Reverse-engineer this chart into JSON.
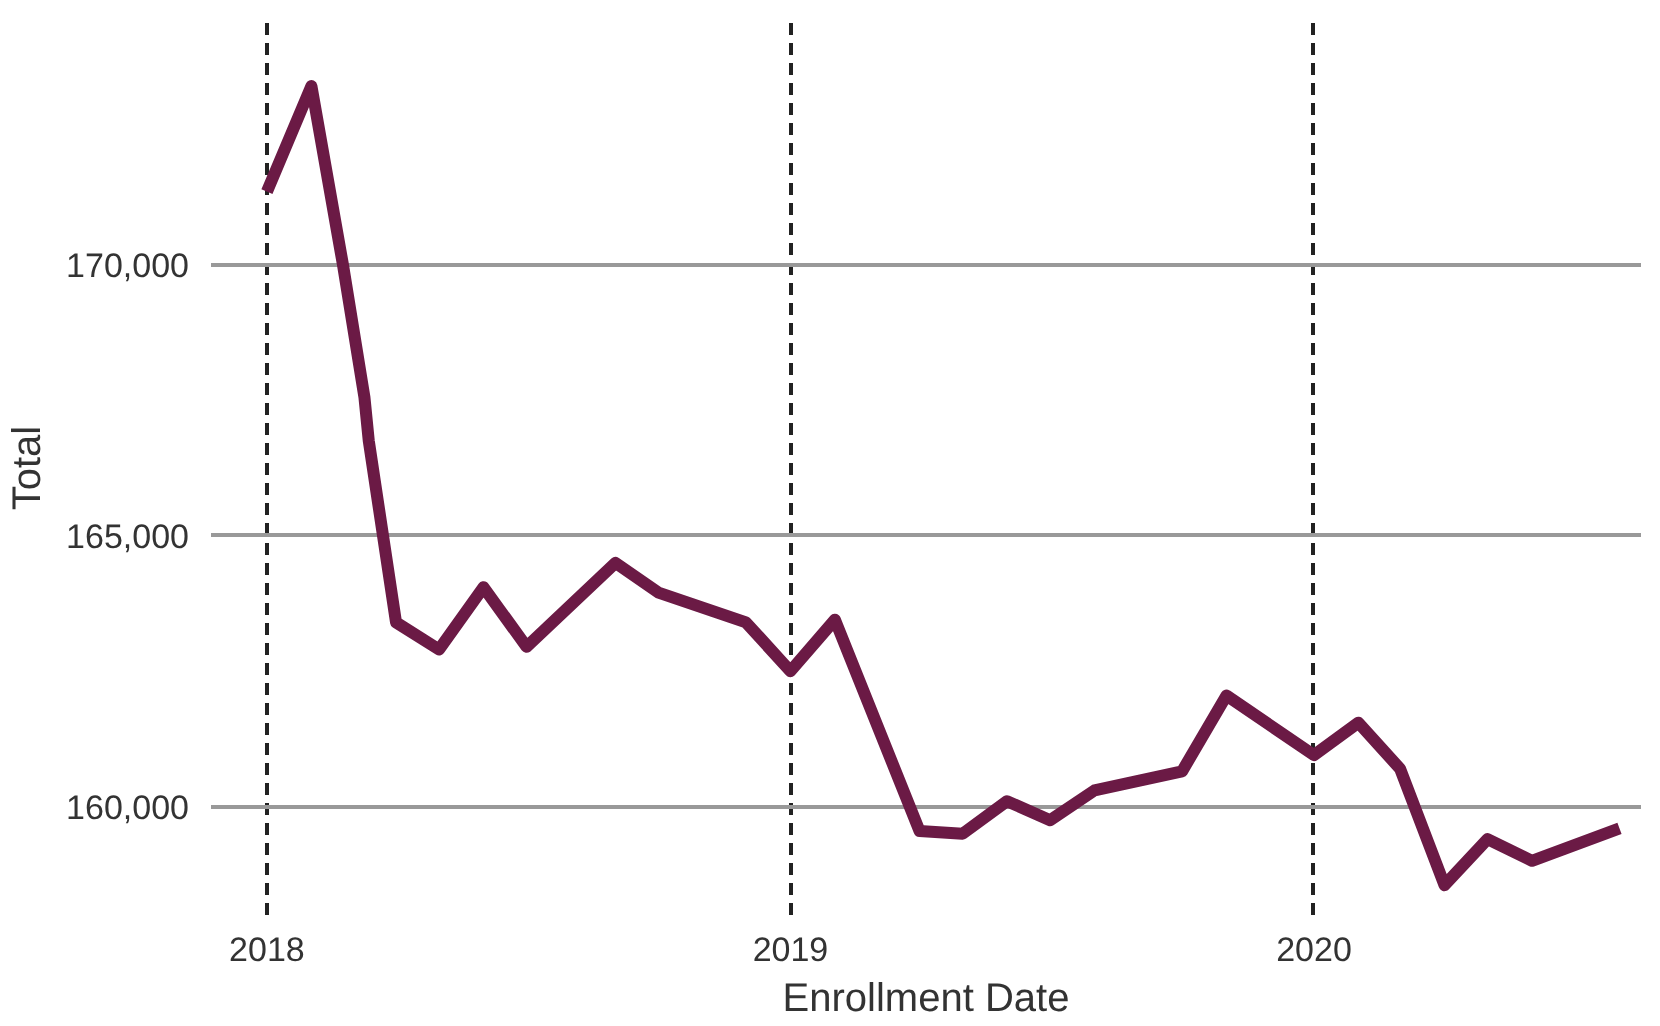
{
  "chart_data": {
    "type": "line",
    "xlabel": "Enrollment Date",
    "ylabel": "Total",
    "x": [
      "2018-01-01",
      "2018-02-01",
      "2018-02-23",
      "2018-03-10",
      "2018-03-13",
      "2018-04-01",
      "2018-05-01",
      "2018-06-01",
      "2018-07-01",
      "2018-09-01",
      "2018-10-01",
      "2018-12-01",
      "2019-01-01",
      "2019-02-01",
      "2019-04-01",
      "2019-05-01",
      "2019-06-01",
      "2019-07-01",
      "2019-08-01",
      "2019-10-01",
      "2019-11-01",
      "2020-01-01",
      "2020-02-01",
      "2020-03-01",
      "2020-04-01",
      "2020-05-01",
      "2020-06-01",
      "2020-08-01"
    ],
    "series": [
      {
        "color": "#6b1a45",
        "values": [
          171350,
          173300,
          170000,
          167550,
          166750,
          163400,
          162900,
          164050,
          162950,
          164500,
          163950,
          163400,
          162500,
          163450,
          159550,
          159500,
          160100,
          159750,
          160300,
          160650,
          162050,
          160950,
          161550,
          160700,
          158550,
          159400,
          159000,
          159600
        ]
      }
    ],
    "xlim": [
      "2017-11-23",
      "2020-08-16"
    ],
    "ylim": [
      158000,
      174500
    ],
    "xticks": [
      {
        "value": "2018-01-01",
        "label": "2018"
      },
      {
        "value": "2019-01-01",
        "label": "2019"
      },
      {
        "value": "2020-01-01",
        "label": "2020"
      }
    ],
    "yticks": [
      {
        "value": 160000,
        "label": "160,000"
      },
      {
        "value": 165000,
        "label": "165,000"
      },
      {
        "value": 170000,
        "label": "170,000"
      }
    ],
    "grid": true,
    "marker": "none",
    "line_style": "solid"
  }
}
